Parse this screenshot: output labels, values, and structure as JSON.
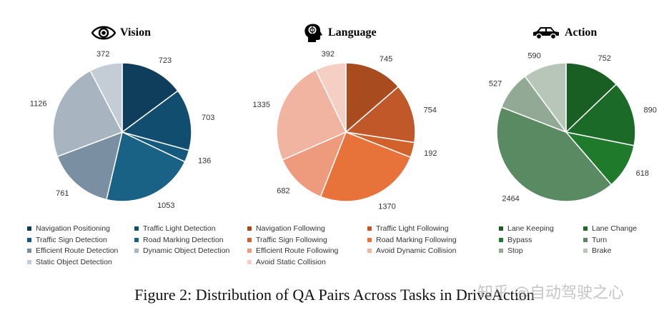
{
  "caption": "Figure 2: Distribution of QA Pairs Across Tasks in DriveAction",
  "watermark": "知乎 @自动驾驶之心",
  "chart_data": [
    {
      "type": "pie",
      "title": "Vision",
      "icon": "eye-icon",
      "categories": [
        "Navigation Positioning",
        "Traffic Light Detection",
        "Traffic Sign Detection",
        "Road Marking Detection",
        "Efficient Route Detection",
        "Dynamic Object Detection",
        "Static Object Detection"
      ],
      "values": [
        723,
        703,
        136,
        1053,
        761,
        1126,
        372
      ],
      "colors": [
        "#0f3d5c",
        "#114d6e",
        "#155a7e",
        "#1a6186",
        "#7a8fa1",
        "#a8b5c1",
        "#c4ccd5"
      ]
    },
    {
      "type": "pie",
      "title": "Language",
      "icon": "head-brain-icon",
      "categories": [
        "Navigation Following",
        "Traffic Light Following",
        "Traffic Sign Following",
        "Road Marking Following",
        "Efficient Route Following",
        "Avoid Dynamic Collision",
        "Avoid Static Collision"
      ],
      "values": [
        745,
        754,
        192,
        1370,
        682,
        1335,
        392
      ],
      "colors": [
        "#a84b1e",
        "#c0582a",
        "#d2622b",
        "#e8733a",
        "#ee9b7d",
        "#f1b4a0",
        "#f5cfc4"
      ]
    },
    {
      "type": "pie",
      "title": "Action",
      "icon": "car-icon",
      "categories": [
        "Lane Keeping",
        "Lane Change",
        "Bypass",
        "Turn",
        "Stop",
        "Brake"
      ],
      "values": [
        752,
        890,
        618,
        2464,
        527,
        590
      ],
      "colors": [
        "#195e22",
        "#1b6a27",
        "#1f7a2c",
        "#5a8a62",
        "#91a995",
        "#b7c6b9"
      ]
    }
  ]
}
